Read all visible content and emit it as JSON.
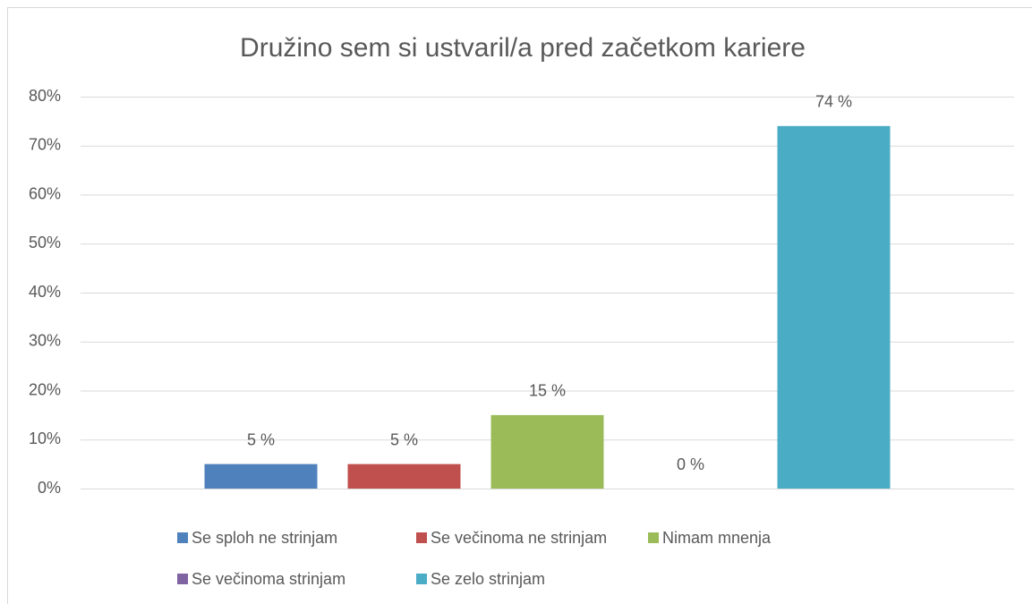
{
  "chart_data": {
    "type": "bar",
    "title": "Družino sem si ustvaril/a pred začetkom kariere",
    "categories": [
      null
    ],
    "series": [
      {
        "name": "Se sploh ne strinjam",
        "color": "#4f81bd",
        "values": [
          5
        ],
        "value_labels": [
          "5 %"
        ]
      },
      {
        "name": "Se večinoma ne strinjam",
        "color": "#c0504d",
        "values": [
          5
        ],
        "value_labels": [
          "5 %"
        ]
      },
      {
        "name": "Nimam mnenja",
        "color": "#9bbb59",
        "values": [
          15
        ],
        "value_labels": [
          "15 %"
        ]
      },
      {
        "name": "Se večinoma strinjam",
        "color": "#8064a2",
        "values": [
          0
        ],
        "value_labels": [
          "0 %"
        ]
      },
      {
        "name": "Se zelo strinjam",
        "color": "#4bacc6",
        "values": [
          74
        ],
        "value_labels": [
          "74 %"
        ]
      }
    ],
    "ylim": [
      0,
      80
    ],
    "yticks": [
      {
        "value": 0,
        "label": "0%"
      },
      {
        "value": 10,
        "label": "10%"
      },
      {
        "value": 20,
        "label": "20%"
      },
      {
        "value": 30,
        "label": "30%"
      },
      {
        "value": 40,
        "label": "40%"
      },
      {
        "value": 50,
        "label": "50%"
      },
      {
        "value": 60,
        "label": "60%"
      },
      {
        "value": 70,
        "label": "70%"
      },
      {
        "value": 80,
        "label": "80%"
      }
    ],
    "grid": true,
    "legend": "bottom"
  }
}
